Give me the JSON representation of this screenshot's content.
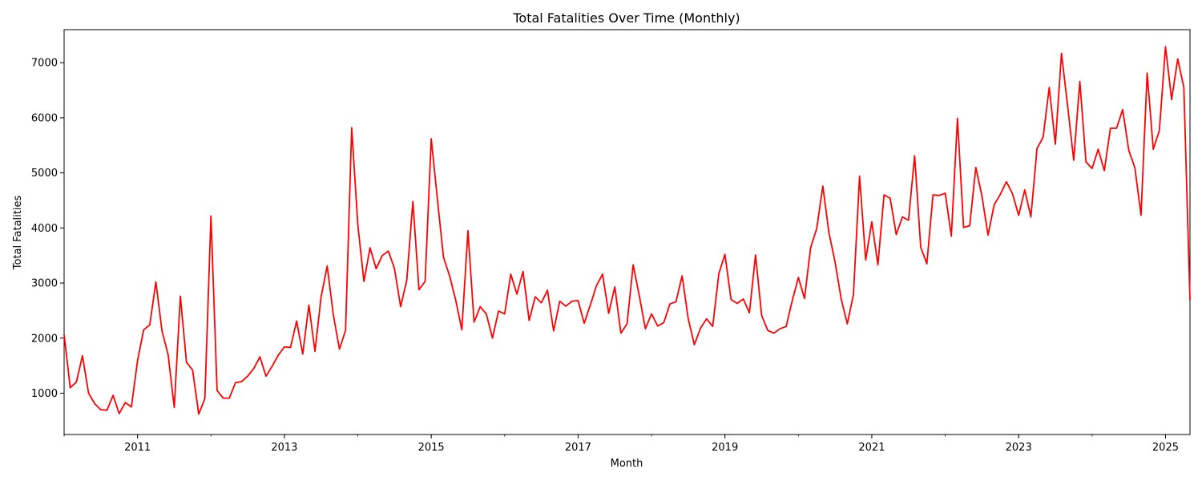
{
  "chart_data": {
    "type": "line",
    "title": "Total Fatalities Over Time (Monthly)",
    "xlabel": "Month",
    "ylabel": "Total Fatalities",
    "grid": false,
    "legend": "none",
    "color": "#ff0000",
    "x_start": "2010-01",
    "x_end": "2025-05",
    "xlim": [
      "2010-01",
      "2025-05"
    ],
    "ylim": [
      250,
      7600
    ],
    "x_major_ticks": [
      "2011-01",
      "2013-01",
      "2015-01",
      "2017-01",
      "2019-01",
      "2021-01",
      "2023-01",
      "2025-01"
    ],
    "x_tick_labels": [
      "2011",
      "2013",
      "2015",
      "2017",
      "2019",
      "2021",
      "2023",
      "2025"
    ],
    "y_ticks": [
      1000,
      2000,
      3000,
      4000,
      5000,
      6000,
      7000
    ],
    "y_tick_labels": [
      "1000",
      "2000",
      "3000",
      "4000",
      "5000",
      "6000",
      "7000"
    ],
    "series": [
      {
        "values": [
          2060,
          1100,
          1200,
          1680,
          1000,
          810,
          700,
          690,
          960,
          630,
          830,
          750,
          1590,
          2150,
          2240,
          3020,
          2130,
          1700,
          740,
          2760,
          1560,
          1420,
          620,
          900,
          4220,
          1050,
          910,
          910,
          1190,
          1210,
          1310,
          1450,
          1660,
          1310,
          1490,
          1690,
          1840,
          1830,
          2310,
          1710,
          2600,
          1760,
          2750,
          3310,
          2420,
          1800,
          2140,
          5820,
          4060,
          3030,
          3640,
          3260,
          3500,
          3580,
          3260,
          2570,
          3050,
          4480,
          2880,
          3030,
          5620,
          4530,
          3470,
          3130,
          2690,
          2150,
          3950,
          2290,
          2570,
          2440,
          2000,
          2490,
          2440,
          3160,
          2800,
          3210,
          2320,
          2750,
          2640,
          2870,
          2130,
          2670,
          2580,
          2670,
          2680,
          2270,
          2600,
          2950,
          3160,
          2450,
          2930,
          2090,
          2260,
          3330,
          2770,
          2170,
          2440,
          2220,
          2280,
          2620,
          2660,
          3130,
          2350,
          1880,
          2180,
          2350,
          2210,
          3170,
          3520,
          2700,
          2630,
          2710,
          2460,
          3510,
          2410,
          2140,
          2090,
          2170,
          2210,
          2680,
          3100,
          2720,
          3640,
          3990,
          4760,
          3910,
          3380,
          2710,
          2260,
          2790,
          4940,
          3420,
          4110,
          3330,
          4600,
          4540,
          3880,
          4200,
          4140,
          5310,
          3650,
          3350,
          4600,
          4590,
          4630,
          3850,
          5990,
          4010,
          4040,
          5100,
          4580,
          3870,
          4420,
          4610,
          4840,
          4620,
          4230,
          4690,
          4200,
          5440,
          5650,
          6550,
          5520,
          7170,
          6220,
          5230,
          6660,
          5200,
          5080,
          5430,
          5040,
          5810,
          5810,
          6150,
          5410,
          5090,
          4230,
          6810,
          5430,
          5770,
          7290,
          6330,
          7070,
          6550,
          2690
        ]
      }
    ]
  }
}
